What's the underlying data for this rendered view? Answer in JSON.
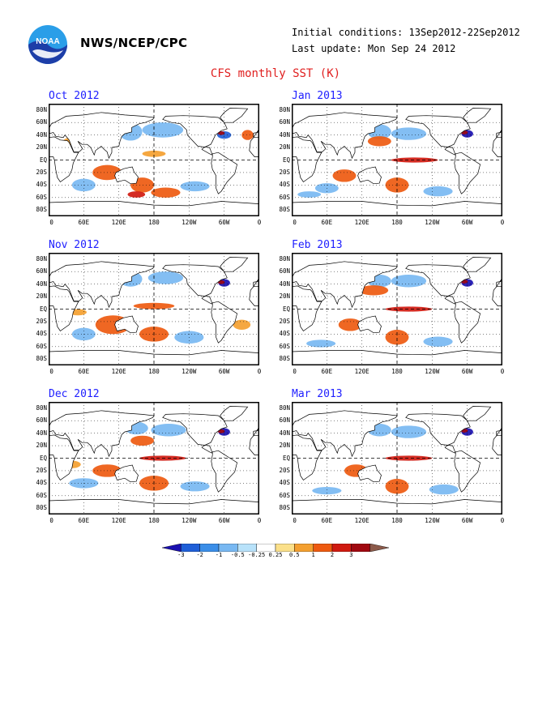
{
  "header": {
    "org": "NWS/NCEP/CPC",
    "logo_text": "NOAA",
    "initial_conditions": "Initial conditions: 13Sep2012-22Sep2012",
    "last_update": "Last update: Mon Sep 24 2012"
  },
  "title": "CFS monthly SST (K)",
  "panels": [
    {
      "title": "Oct 2012"
    },
    {
      "title": "Jan 2013"
    },
    {
      "title": "Nov 2012"
    },
    {
      "title": "Feb 2013"
    },
    {
      "title": "Dec 2012"
    },
    {
      "title": "Mar 2013"
    }
  ],
  "lat_labels": [
    "80N",
    "60N",
    "40N",
    "20N",
    "EQ",
    "20S",
    "40S",
    "60S",
    "80S"
  ],
  "lon_labels": [
    "0",
    "60E",
    "120E",
    "180",
    "120W",
    "60W",
    "0"
  ],
  "colorbar": {
    "labels": [
      "-3",
      "-2",
      "-1",
      "-0.5",
      "-0.25",
      "0.25",
      "0.5",
      "1",
      "2",
      "3"
    ],
    "colors": [
      "#1a10b0",
      "#1f5fd8",
      "#3b8ee8",
      "#78b8f2",
      "#b8e2fa",
      "#ffffff",
      "#fbe08a",
      "#f4a030",
      "#ee5a10",
      "#d01a10",
      "#a00810",
      "#8c5a4a"
    ]
  },
  "colors": {
    "title": "#e02020",
    "panel_title": "#2020ff"
  }
}
